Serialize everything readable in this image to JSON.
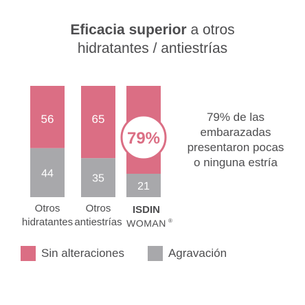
{
  "title": {
    "bold": "Eficacia superior",
    "rest": "a otros",
    "line2": "hidratantes / antiestrías"
  },
  "note": [
    "79% de las",
    "embarazadas",
    "presentaron pocas",
    "o ninguna estría"
  ],
  "colors": {
    "pink": "#db6e84",
    "gray": "#a8a8ab",
    "text": "#4d4d4f"
  },
  "chart_data": {
    "type": "bar",
    "stacked": true,
    "categories": [
      {
        "lines": [
          "Otros",
          "hidratantes"
        ]
      },
      {
        "lines": [
          "Otros",
          "antiestrías"
        ]
      },
      {
        "brand": "ISDIN",
        "brand2": "WOMAN",
        "mark": "®"
      }
    ],
    "series": [
      {
        "name": "Sin alteraciones",
        "color": "#db6e84",
        "values": [
          56,
          65,
          79
        ]
      },
      {
        "name": "Agravación",
        "color": "#a8a8ab",
        "values": [
          44,
          35,
          21
        ]
      }
    ],
    "labels": [
      {
        "top": "56",
        "bottom": "44"
      },
      {
        "top": "65",
        "bottom": "35"
      },
      {
        "top": "79%",
        "bottom": "21"
      }
    ],
    "ylim": [
      0,
      100
    ]
  },
  "legend": [
    {
      "label": "Sin alteraciones",
      "color": "#db6e84"
    },
    {
      "label": "Agravación",
      "color": "#a8a8ab"
    }
  ]
}
